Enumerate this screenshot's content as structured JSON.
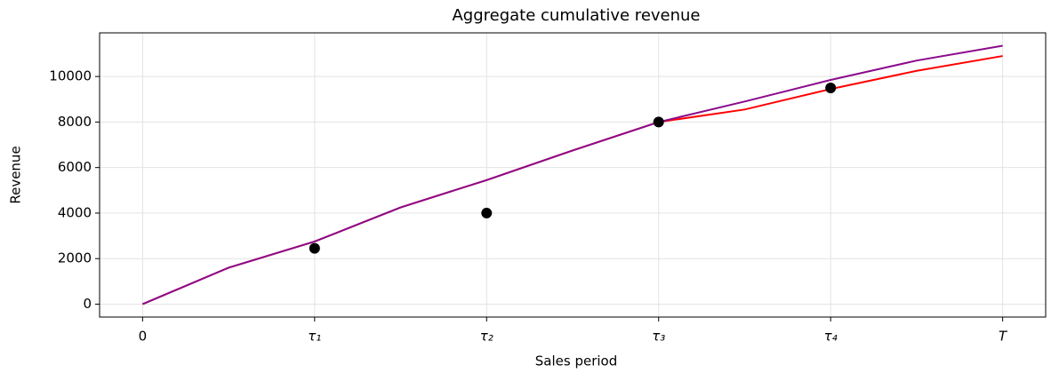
{
  "chart_data": {
    "type": "line",
    "title": "Aggregate cumulative revenue",
    "x_label": "Sales period",
    "y_label": "Revenue",
    "x": [
      0,
      0.5,
      1,
      1.5,
      2,
      2.5,
      3,
      3.5,
      4,
      4.5,
      5
    ],
    "series": [
      {
        "color": "#ff0000",
        "values": [
          0,
          1600,
          2750,
          4250,
          5450,
          6750,
          8000,
          8550,
          9450,
          10250,
          10900
        ]
      },
      {
        "color": "#8b0a8b",
        "values": [
          0,
          1600,
          2750,
          4250,
          5450,
          6750,
          8000,
          8900,
          9850,
          10700,
          11350
        ]
      }
    ],
    "points": {
      "color": "#000000",
      "x": [
        1,
        2,
        3,
        4
      ],
      "values": [
        2450,
        4000,
        8000,
        9500
      ]
    },
    "xlim": [
      -0.25,
      5.25
    ],
    "xticks": [
      0,
      {
        "value": 1,
        "label": "τ₁"
      },
      {
        "value": 2,
        "label": "τ₂"
      },
      {
        "value": 3,
        "label": "τ₃"
      },
      {
        "value": 4,
        "label": "τ₄"
      },
      {
        "value": 5,
        "label": "T"
      }
    ],
    "ylim": [
      -567,
      11917
    ],
    "yticks": [
      0,
      2000,
      4000,
      6000,
      8000,
      10000
    ],
    "grid": true
  }
}
